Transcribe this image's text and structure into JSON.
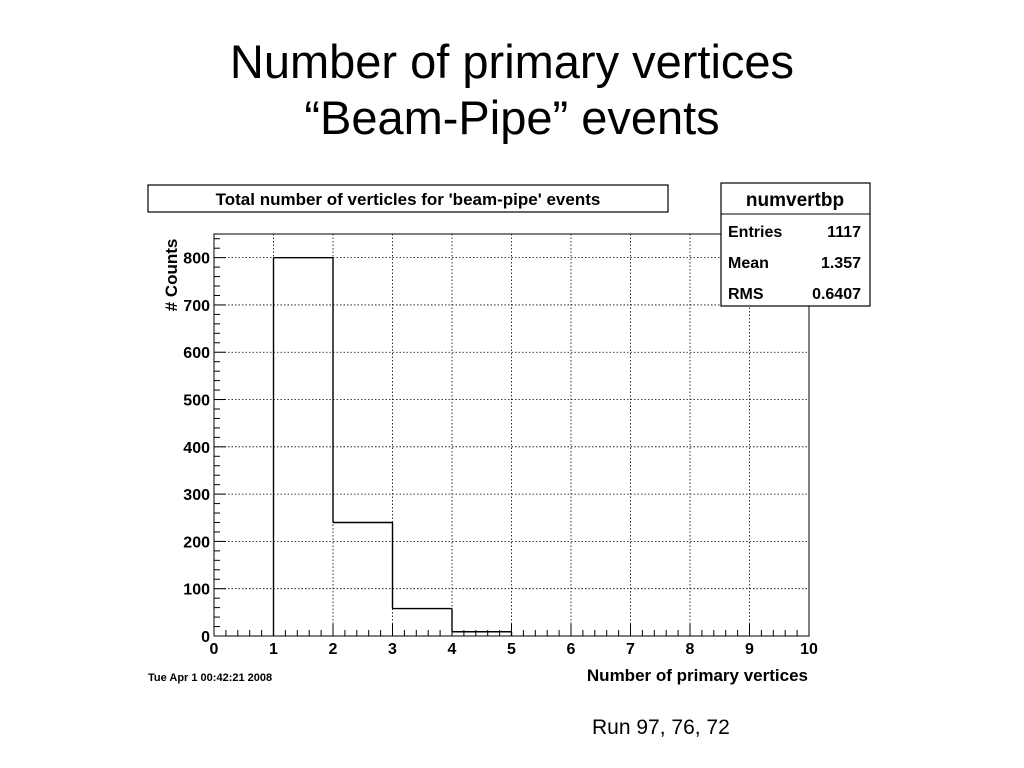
{
  "slide": {
    "title_line1": "Number of primary vertices",
    "title_line2": "“Beam-Pipe” events",
    "caption": "Run 97, 76, 72"
  },
  "chart_data": {
    "type": "bar",
    "title": "Total number of verticles for 'beam-pipe' events",
    "xlabel": "Number of primary vertices",
    "ylabel": "# Counts",
    "xlim": [
      0,
      10
    ],
    "ylim": [
      0,
      850
    ],
    "x_ticks": [
      0,
      1,
      2,
      3,
      4,
      5,
      6,
      7,
      8,
      9,
      10
    ],
    "y_ticks": [
      0,
      100,
      200,
      300,
      400,
      500,
      600,
      700,
      800
    ],
    "bins": [
      {
        "low": 1,
        "high": 2,
        "value": 800
      },
      {
        "low": 2,
        "high": 3,
        "value": 240
      },
      {
        "low": 3,
        "high": 4,
        "value": 58
      },
      {
        "low": 4,
        "high": 5,
        "value": 9
      }
    ],
    "grid": true,
    "stats_box": {
      "name": "numvertbp",
      "rows": [
        {
          "label": "Entries",
          "value": "1117"
        },
        {
          "label": "Mean",
          "value": "1.357"
        },
        {
          "label": "RMS",
          "value": "0.6407"
        }
      ]
    },
    "timestamp": "Tue Apr  1 00:42:21 2008"
  }
}
